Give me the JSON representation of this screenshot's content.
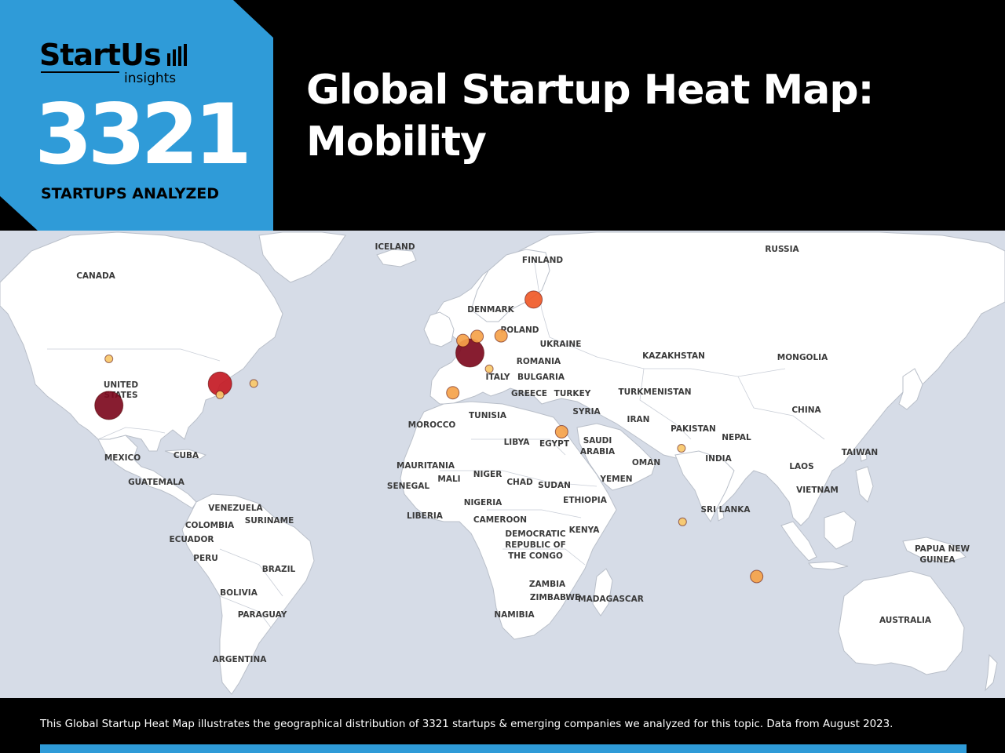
{
  "header": {
    "logo_text": "StartUs",
    "logo_sub": "insights",
    "startups_count": "3321",
    "startups_caption": "STARTUPS ANALYZED",
    "title_line1": "Global Startup Heat Map:",
    "title_line2": "Mobility"
  },
  "colors": {
    "brand_blue": "#2f9bd8",
    "header_bg": "#000000",
    "ocean": "#d6dce7",
    "land": "#ffffff"
  },
  "map": {
    "country_labels": [
      {
        "name": "ICELAND"
      },
      {
        "name": "FINLAND"
      },
      {
        "name": "RUSSIA"
      },
      {
        "name": "CANADA"
      },
      {
        "name": "DENMARK"
      },
      {
        "name": "POLAND"
      },
      {
        "name": "UKRAINE"
      },
      {
        "name": "KAZAKHSTAN"
      },
      {
        "name": "MONGOLIA"
      },
      {
        "name": "ROMANIA"
      },
      {
        "name": "ITALY"
      },
      {
        "name": "BULGARIA"
      },
      {
        "name": "GREECE"
      },
      {
        "name": "TURKEY"
      },
      {
        "name": "TURKMENISTAN"
      },
      {
        "name": "UNITED"
      },
      {
        "name": "STATES"
      },
      {
        "name": "CHINA"
      },
      {
        "name": "SYRIA"
      },
      {
        "name": "TUNISIA"
      },
      {
        "name": "IRAN"
      },
      {
        "name": "MOROCCO"
      },
      {
        "name": "PAKISTAN"
      },
      {
        "name": "NEPAL"
      },
      {
        "name": "LIBYA"
      },
      {
        "name": "EGYPT"
      },
      {
        "name": "SAUDI"
      },
      {
        "name": "ARABIA"
      },
      {
        "name": "MEXICO"
      },
      {
        "name": "CUBA"
      },
      {
        "name": "INDIA"
      },
      {
        "name": "TAIWAN"
      },
      {
        "name": "OMAN"
      },
      {
        "name": "MAURITANIA"
      },
      {
        "name": "GUATEMALA"
      },
      {
        "name": "MALI"
      },
      {
        "name": "NIGER"
      },
      {
        "name": "LAOS"
      },
      {
        "name": "YEMEN"
      },
      {
        "name": "CHAD"
      },
      {
        "name": "SENEGAL"
      },
      {
        "name": "SUDAN"
      },
      {
        "name": "VIETNAM"
      },
      {
        "name": "NIGERIA"
      },
      {
        "name": "ETHIOPIA"
      },
      {
        "name": "VENEZUELA"
      },
      {
        "name": "SRI LANKA"
      },
      {
        "name": "LIBERIA"
      },
      {
        "name": "CAMEROON"
      },
      {
        "name": "SURINAME"
      },
      {
        "name": "COLOMBIA"
      },
      {
        "name": "KENYA"
      },
      {
        "name": "DEMOCRATIC"
      },
      {
        "name": "ECUADOR"
      },
      {
        "name": "REPUBLIC OF"
      },
      {
        "name": "PAPUA NEW"
      },
      {
        "name": "PERU"
      },
      {
        "name": "THE CONGO"
      },
      {
        "name": "GUINEA"
      },
      {
        "name": "BRAZIL"
      },
      {
        "name": "ZAMBIA"
      },
      {
        "name": "BOLIVIA"
      },
      {
        "name": "ZIMBABWE"
      },
      {
        "name": "MADAGASCAR"
      },
      {
        "name": "NAMIBIA"
      },
      {
        "name": "PARAGUAY"
      },
      {
        "name": "AUSTRALIA"
      },
      {
        "name": "ARGENTINA"
      }
    ],
    "hotspots": [
      {
        "name": "San Francisco Bay Area",
        "lat": 37.7,
        "lon": -122.3,
        "level": 5,
        "color": "#7d0a1e"
      },
      {
        "name": "Paris",
        "lat": 48.85,
        "lon": 2.35,
        "level": 5,
        "color": "#7d0a1e"
      },
      {
        "name": "Detroit",
        "lat": 42.3,
        "lon": -83.0,
        "level": 4,
        "color": "#c41a24"
      },
      {
        "name": "Helsinki",
        "lat": 60.2,
        "lon": 24.9,
        "level": 3,
        "color": "#f05a28"
      },
      {
        "name": "London",
        "lat": 51.5,
        "lon": -0.1,
        "level": 2,
        "color": "#f5a24a"
      },
      {
        "name": "Amsterdam",
        "lat": 52.37,
        "lon": 4.9,
        "level": 2,
        "color": "#f5a24a"
      },
      {
        "name": "Berlin",
        "lat": 52.5,
        "lon": 13.4,
        "level": 2,
        "color": "#f5a24a"
      },
      {
        "name": "Madrid",
        "lat": 40.4,
        "lon": -3.7,
        "level": 2,
        "color": "#f5a24a"
      },
      {
        "name": "Tel Aviv",
        "lat": 32.1,
        "lon": 34.8,
        "level": 2,
        "color": "#f5a24a"
      },
      {
        "name": "Singapore",
        "lat": 1.35,
        "lon": 103.8,
        "level": 2,
        "color": "#f5a24a"
      },
      {
        "name": "Seattle",
        "lat": 47.6,
        "lon": -122.3,
        "level": 1,
        "color": "#f8c86a"
      },
      {
        "name": "Columbus",
        "lat": 39.96,
        "lon": -83.0,
        "level": 1,
        "color": "#f8c86a"
      },
      {
        "name": "Boston",
        "lat": 42.36,
        "lon": -71.06,
        "level": 1,
        "color": "#f8c86a"
      },
      {
        "name": "Milan",
        "lat": 45.46,
        "lon": 9.19,
        "level": 1,
        "color": "#f8c86a"
      },
      {
        "name": "Delhi",
        "lat": 28.6,
        "lon": 77.2,
        "level": 1,
        "color": "#f8c86a"
      },
      {
        "name": "Bangalore",
        "lat": 12.97,
        "lon": 77.59,
        "level": 1,
        "color": "#f8c86a"
      }
    ]
  },
  "footer": {
    "text": "This Global Startup Heat Map illustrates the geographical distribution of 3321 startups & emerging companies we analyzed for this topic. Data from August 2023."
  }
}
